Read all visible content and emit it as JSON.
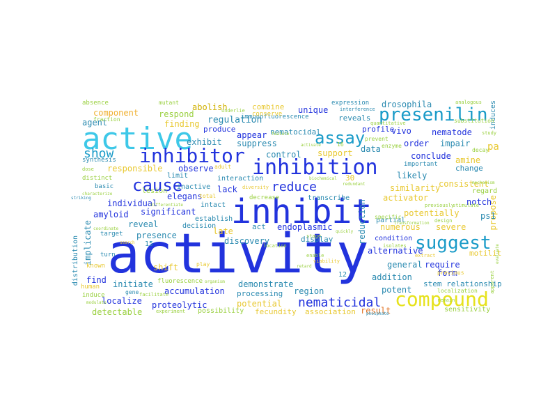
{
  "words": [
    {
      "text": "activity",
      "color": "#2233dd"
    },
    {
      "text": "inhibit",
      "color": "#2233dd"
    },
    {
      "text": "active",
      "color": "#3ec8e8"
    },
    {
      "text": "inhibition",
      "color": "#2233dd"
    },
    {
      "text": "inhibitor",
      "color": "#2233dd"
    },
    {
      "text": "compound",
      "color": "#e6e21c"
    },
    {
      "text": "presenilin",
      "color": "#1a9bc8"
    },
    {
      "text": "suggest",
      "color": "#1a9bc8"
    },
    {
      "text": "cause",
      "color": "#2233dd"
    },
    {
      "text": "assay",
      "color": "#1a9bc8"
    },
    {
      "text": "show",
      "color": "#1a9bc8"
    },
    {
      "text": "reduce",
      "color": "#2233dd"
    },
    {
      "text": "nematicidal",
      "color": "#2233dd"
    },
    {
      "text": "component",
      "color": "#f0b030"
    },
    {
      "text": "respond",
      "color": "#9ad040"
    },
    {
      "text": "abolish",
      "color": "#d0b000"
    },
    {
      "text": "combine",
      "color": "#e8c830"
    },
    {
      "text": "unique",
      "color": "#2233dd"
    },
    {
      "text": "reveals",
      "color": "#2a8ab0"
    },
    {
      "text": "drosophila",
      "color": "#2a8ab0"
    },
    {
      "text": "expression",
      "color": "#2a8ab0"
    },
    {
      "text": "agent",
      "color": "#2a8ab0"
    },
    {
      "text": "finding",
      "color": "#e8c830"
    },
    {
      "text": "regulation",
      "color": "#2a8ab0"
    },
    {
      "text": "immunofluorescence",
      "color": "#2a8ab0"
    },
    {
      "text": "profile",
      "color": "#2233dd"
    },
    {
      "text": "vivo",
      "color": "#2233dd"
    },
    {
      "text": "nematode",
      "color": "#2233dd"
    },
    {
      "text": "produce",
      "color": "#2233dd"
    },
    {
      "text": "appear",
      "color": "#2233dd"
    },
    {
      "text": "nematocidal",
      "color": "#2a8ab0"
    },
    {
      "text": "exhibit",
      "color": "#2a8ab0"
    },
    {
      "text": "suppress",
      "color": "#2a8ab0"
    },
    {
      "text": "order",
      "color": "#2233dd"
    },
    {
      "text": "impair",
      "color": "#2a8ab0"
    },
    {
      "text": "data",
      "color": "#2a8ab0"
    },
    {
      "text": "conclude",
      "color": "#2233dd"
    },
    {
      "text": "support",
      "color": "#e8c830"
    },
    {
      "text": "control",
      "color": "#2a8ab0"
    },
    {
      "text": "amine",
      "color": "#e8c830"
    },
    {
      "text": "responsible",
      "color": "#e8c830"
    },
    {
      "text": "observe",
      "color": "#2233dd"
    },
    {
      "text": "change",
      "color": "#2a8ab0"
    },
    {
      "text": "likely",
      "color": "#2a8ab0"
    },
    {
      "text": "important",
      "color": "#2a8ab0"
    },
    {
      "text": "consistent",
      "color": "#e8c830"
    },
    {
      "text": "similarity",
      "color": "#e8c830"
    },
    {
      "text": "activator",
      "color": "#e8c830"
    },
    {
      "text": "individual",
      "color": "#2233dd"
    },
    {
      "text": "amyloid",
      "color": "#2233dd"
    },
    {
      "text": "lack",
      "color": "#2233dd"
    },
    {
      "text": "elegans",
      "color": "#2233dd"
    },
    {
      "text": "basic",
      "color": "#2a8ab0"
    },
    {
      "text": "limit",
      "color": "#2a8ab0"
    },
    {
      "text": "inactive",
      "color": "#2a8ab0"
    },
    {
      "text": "significant",
      "color": "#2233dd"
    },
    {
      "text": "intact",
      "color": "#2a8ab0"
    },
    {
      "text": "potentially",
      "color": "#e8c830"
    },
    {
      "text": "notch",
      "color": "#2233dd"
    },
    {
      "text": "propose",
      "color": "#e8c830"
    },
    {
      "text": "reveal",
      "color": "#2a8ab0"
    },
    {
      "text": "decision",
      "color": "#2a8ab0"
    },
    {
      "text": "late",
      "color": "#e8c830"
    },
    {
      "text": "endoplasmic",
      "color": "#2233dd"
    },
    {
      "text": "numerous",
      "color": "#e8c830"
    },
    {
      "text": "severe",
      "color": "#e8c830"
    },
    {
      "text": "implicate",
      "color": "#2a8ab0"
    },
    {
      "text": "presence",
      "color": "#2a8ab0"
    },
    {
      "text": "discovery",
      "color": "#2a8ab0"
    },
    {
      "text": "display",
      "color": "#2a8ab0"
    },
    {
      "text": "condition",
      "color": "#2233dd"
    },
    {
      "text": "alternative",
      "color": "#2233dd"
    },
    {
      "text": "shift",
      "color": "#e8c830"
    },
    {
      "text": "require",
      "color": "#2233dd"
    },
    {
      "text": "general",
      "color": "#2a8ab0"
    },
    {
      "text": "find",
      "color": "#2233dd"
    },
    {
      "text": "initiate",
      "color": "#2a8ab0"
    },
    {
      "text": "addition",
      "color": "#2a8ab0"
    },
    {
      "text": "accumulation",
      "color": "#2233dd"
    },
    {
      "text": "demonstrate",
      "color": "#2a8ab0"
    },
    {
      "text": "region",
      "color": "#2a8ab0"
    },
    {
      "text": "form",
      "color": "#2233dd"
    },
    {
      "text": "stem relationship",
      "color": "#2a8ab0"
    },
    {
      "text": "localize",
      "color": "#2233dd"
    },
    {
      "text": "processing",
      "color": "#2a8ab0"
    },
    {
      "text": "potent",
      "color": "#2a8ab0"
    },
    {
      "text": "proteolytic",
      "color": "#2233dd"
    },
    {
      "text": "potential",
      "color": "#e8c830"
    },
    {
      "text": "association",
      "color": "#e8c830"
    },
    {
      "text": "result",
      "color": "#e07020"
    },
    {
      "text": "detectable",
      "color": "#9ad040"
    },
    {
      "text": "possibility",
      "color": "#9ad040"
    },
    {
      "text": "fecundity",
      "color": "#e8c830"
    },
    {
      "text": "reduction",
      "color": "#2a8ab0"
    },
    {
      "text": "distribution",
      "color": "#2a8ab0"
    },
    {
      "text": "motility",
      "color": "#e8c830"
    },
    {
      "text": "sensitivity",
      "color": "#9ad040"
    },
    {
      "text": "induces",
      "color": "#2a8ab0"
    },
    {
      "text": "pa",
      "color": "#e8c830"
    },
    {
      "text": "30",
      "color": "#e8c830"
    },
    {
      "text": "absence",
      "color": "#9ad040"
    },
    {
      "text": "mutant",
      "color": "#9ad040"
    },
    {
      "text": "fraction",
      "color": "#9ad040"
    },
    {
      "text": "establish",
      "color": "#2a8ab0"
    },
    {
      "text": "interaction",
      "color": "#2a8ab0"
    },
    {
      "text": "transcribe",
      "color": "#2a8ab0"
    },
    {
      "text": "decrease",
      "color": "#9ad040"
    },
    {
      "text": "partial",
      "color": "#2a8ab0"
    },
    {
      "text": "act",
      "color": "#2a8ab0"
    },
    {
      "text": "synthesis",
      "color": "#2a8ab0"
    },
    {
      "text": "distinct",
      "color": "#9ad040"
    },
    {
      "text": "lesion",
      "color": "#9ad040"
    },
    {
      "text": "target",
      "color": "#2a8ab0"
    },
    {
      "text": "known",
      "color": "#e8c830"
    },
    {
      "text": "human",
      "color": "#e8c830"
    },
    {
      "text": "induce",
      "color": "#9ad040"
    },
    {
      "text": "experiment",
      "color": "#9ad040"
    },
    {
      "text": "fluorescence",
      "color": "#9ad040"
    },
    {
      "text": "regard",
      "color": "#9ad040"
    },
    {
      "text": "previous",
      "color": "#e8c830"
    },
    {
      "text": "specific",
      "color": "#9ad040"
    },
    {
      "text": "substitution",
      "color": "#9ad040"
    },
    {
      "text": "turn",
      "color": "#2a8ab0"
    },
    {
      "text": "play",
      "color": "#e8c830"
    },
    {
      "text": "total",
      "color": "#e8c830"
    },
    {
      "text": "ps1",
      "color": "#2a8ab0"
    },
    {
      "text": "interference",
      "color": "#2a8ab0"
    },
    {
      "text": "conserve",
      "color": "#e8c830"
    },
    {
      "text": "underlie",
      "color": "#9ad040"
    },
    {
      "text": "prevent",
      "color": "#9ad040"
    },
    {
      "text": "enzyme",
      "color": "#9ad040"
    },
    {
      "text": "quantitative",
      "color": "#9ad040"
    },
    {
      "text": "decay",
      "color": "#9ad040"
    },
    {
      "text": "study",
      "color": "#9ad040"
    },
    {
      "text": "analogous",
      "color": "#9ad040"
    },
    {
      "text": "mechanism",
      "color": "#9ad040"
    },
    {
      "text": "isolates",
      "color": "#9ad040"
    },
    {
      "text": "location",
      "color": "#9ad040"
    },
    {
      "text": "localization",
      "color": "#9ad040"
    },
    {
      "text": "phosphate",
      "color": "#2a8ab0"
    },
    {
      "text": "viability",
      "color": "#e8c830"
    },
    {
      "text": "stage",
      "color": "#9ad040"
    },
    {
      "text": "design",
      "color": "#9ad040"
    },
    {
      "text": "previously",
      "color": "#9ad040"
    },
    {
      "text": "stimulate",
      "color": "#9ad040"
    },
    {
      "text": "extract",
      "color": "#e8c830"
    },
    {
      "text": "remain",
      "color": "#9ad040"
    },
    {
      "text": "facilitate",
      "color": "#9ad040"
    },
    {
      "text": "gene",
      "color": "#2a8ab0"
    },
    {
      "text": "modulate",
      "color": "#9ad040"
    },
    {
      "text": "differentiate",
      "color": "#9ad040"
    },
    {
      "text": "coordinate",
      "color": "#9ad040"
    },
    {
      "text": "characterize",
      "color": "#9ad040"
    },
    {
      "text": "diversity",
      "color": "#e8c830"
    },
    {
      "text": "biochemical",
      "color": "#9ad040"
    },
    {
      "text": "redundant",
      "color": "#9ad040"
    },
    {
      "text": "transformation",
      "color": "#9ad040"
    },
    {
      "text": "evaluate",
      "color": "#9ad040"
    },
    {
      "text": "apparent",
      "color": "#9ad040"
    },
    {
      "text": "adult",
      "color": "#e8c830"
    },
    {
      "text": "dose",
      "color": "#9ad040"
    },
    {
      "text": "feature",
      "color": "#9ad040"
    },
    {
      "text": "activate",
      "color": "#9ad040"
    },
    {
      "text": "enable",
      "color": "#9ad040"
    },
    {
      "text": "quickly",
      "color": "#9ad040"
    },
    {
      "text": "organism",
      "color": "#9ad040"
    },
    {
      "text": "retard",
      "color": "#9ad040"
    },
    {
      "text": "search",
      "color": "#e8c830"
    },
    {
      "text": "15",
      "color": "#2a8ab0"
    },
    {
      "text": "12",
      "color": "#2a8ab0"
    },
    {
      "text": "16",
      "color": "#9ad040"
    },
    {
      "text": "striking",
      "color": "#2a8ab0"
    }
  ]
}
